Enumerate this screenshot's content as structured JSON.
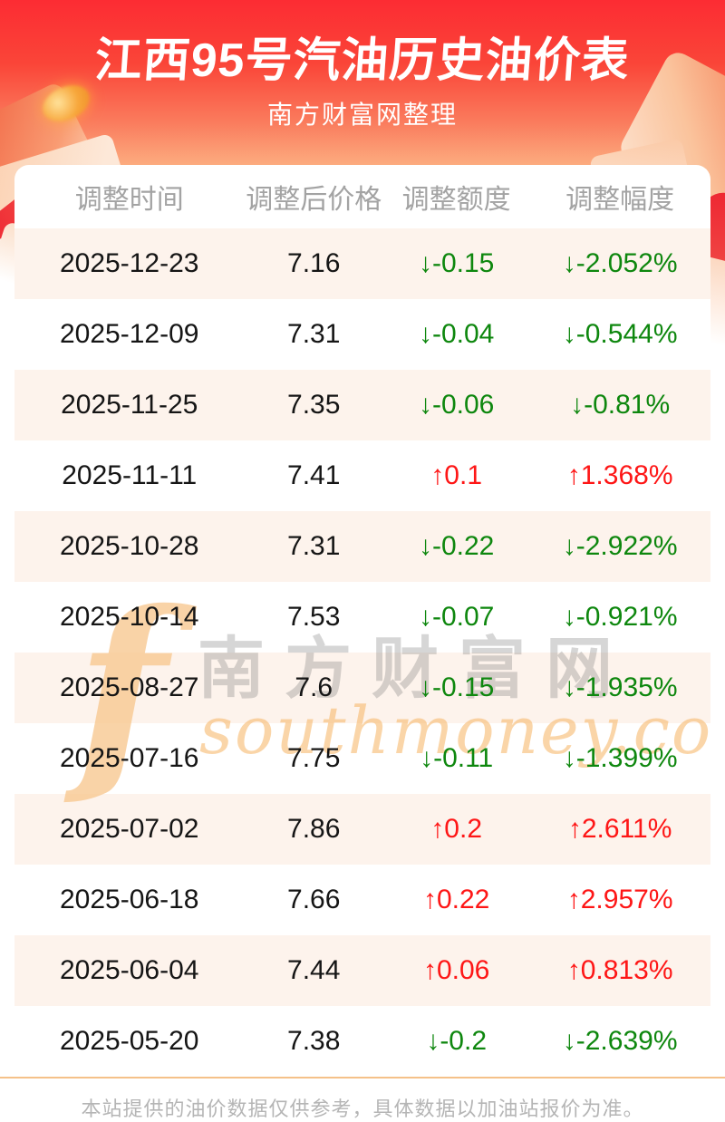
{
  "header": {
    "title": "江西95号汽油历史油价表",
    "subtitle": "南方财富网整理"
  },
  "table": {
    "columns": [
      "调整时间",
      "调整后价格",
      "调整额度",
      "调整幅度"
    ],
    "rows": [
      {
        "date": "2025-12-23",
        "price": "7.16",
        "change": "↓-0.15",
        "pct": "↓-2.052%",
        "direction": "down"
      },
      {
        "date": "2025-12-09",
        "price": "7.31",
        "change": "↓-0.04",
        "pct": "↓-0.544%",
        "direction": "down"
      },
      {
        "date": "2025-11-25",
        "price": "7.35",
        "change": "↓-0.06",
        "pct": "↓-0.81%",
        "direction": "down"
      },
      {
        "date": "2025-11-11",
        "price": "7.41",
        "change": "↑0.1",
        "pct": "↑1.368%",
        "direction": "up"
      },
      {
        "date": "2025-10-28",
        "price": "7.31",
        "change": "↓-0.22",
        "pct": "↓-2.922%",
        "direction": "down"
      },
      {
        "date": "2025-10-14",
        "price": "7.53",
        "change": "↓-0.07",
        "pct": "↓-0.921%",
        "direction": "down"
      },
      {
        "date": "2025-08-27",
        "price": "7.6",
        "change": "↓-0.15",
        "pct": "↓-1.935%",
        "direction": "down"
      },
      {
        "date": "2025-07-16",
        "price": "7.75",
        "change": "↓-0.11",
        "pct": "↓-1.399%",
        "direction": "down"
      },
      {
        "date": "2025-07-02",
        "price": "7.86",
        "change": "↑0.2",
        "pct": "↑2.611%",
        "direction": "up"
      },
      {
        "date": "2025-06-18",
        "price": "7.66",
        "change": "↑0.22",
        "pct": "↑2.957%",
        "direction": "up"
      },
      {
        "date": "2025-06-04",
        "price": "7.44",
        "change": "↑0.06",
        "pct": "↑0.813%",
        "direction": "up"
      },
      {
        "date": "2025-05-20",
        "price": "7.38",
        "change": "↓-0.2",
        "pct": "↓-2.639%",
        "direction": "down"
      }
    ]
  },
  "watermark": {
    "glyph": "f",
    "cn": "南方财富网",
    "en": "southmoney.com"
  },
  "footer": {
    "disclaimer": "本站提供的油价数据仅供参考，具体数据以加油站报价为准。"
  },
  "colors": {
    "up_red": "#fe1616",
    "down_green": "#0e870e",
    "banner_red": "#fc2c33",
    "banner_peach": "#fcae81",
    "row_alt": "#fdf3ec",
    "divider_orange": "#f5c189",
    "header_text_gray": "#a3a3a3"
  }
}
